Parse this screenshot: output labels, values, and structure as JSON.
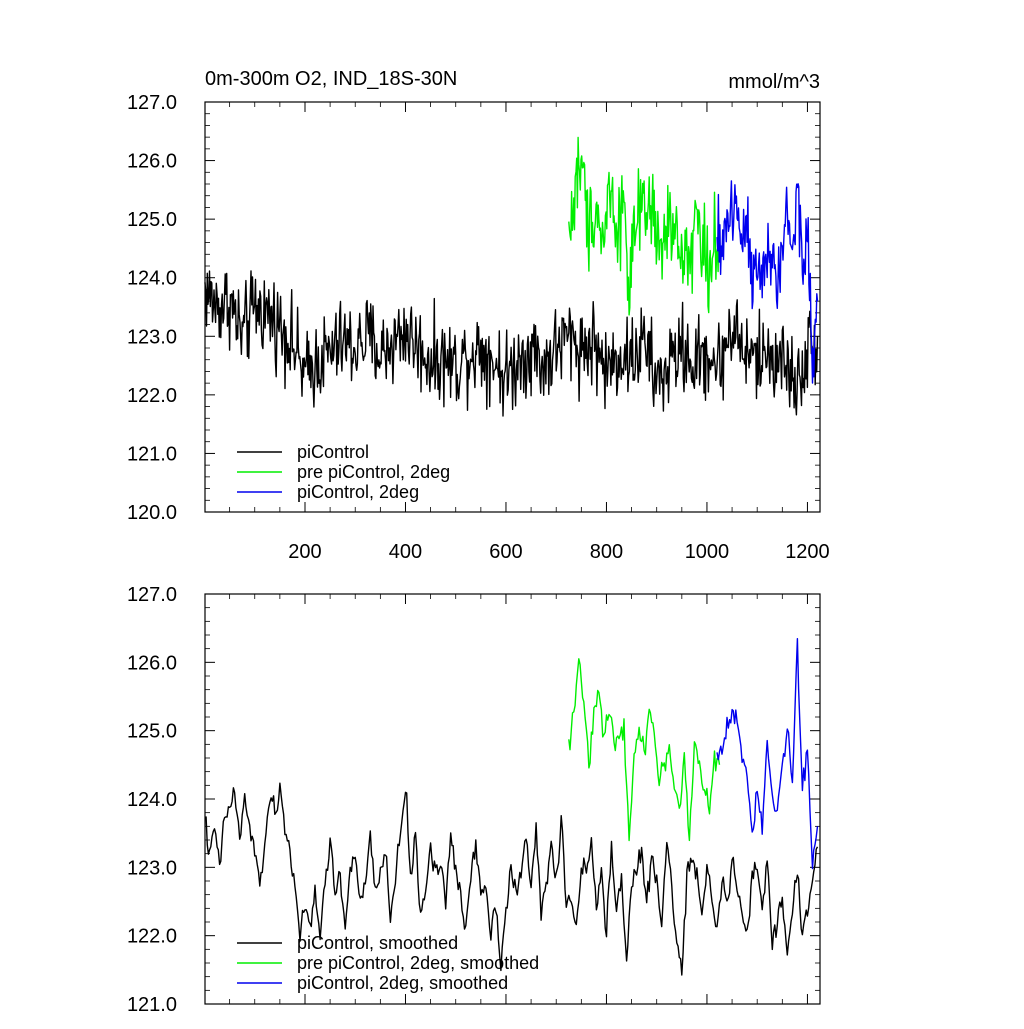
{
  "panels": [
    {
      "title_left": "0m-300m O2, IND_18S-30N",
      "title_right": "mmol/m^3",
      "ytick_labels": [
        "120.0",
        "121.0",
        "122.0",
        "123.0",
        "124.0",
        "125.0",
        "126.0",
        "127.0"
      ],
      "xtick_labels": [
        "200",
        "400",
        "600",
        "800",
        "1000",
        "1200"
      ],
      "legend": [
        "piControl",
        "pre piControl, 2deg",
        "piControl, 2deg"
      ]
    },
    {
      "title_left": "",
      "title_right": "",
      "ytick_labels": [
        "121.0",
        "122.0",
        "123.0",
        "124.0",
        "125.0",
        "126.0",
        "127.0"
      ],
      "xtick_labels": [],
      "legend": [
        "piControl, smoothed",
        "pre piControl, 2deg, smoothed",
        "piControl, 2deg, smoothed"
      ]
    }
  ],
  "chart_data": [
    {
      "type": "line",
      "title": "0m-300m O2, IND_18S-30N",
      "units": "mmol/m^3",
      "xlim": [
        1,
        1225
      ],
      "ylim": [
        120.0,
        127.0
      ],
      "xticks": [
        200,
        400,
        600,
        800,
        1000,
        1200
      ],
      "yticks": [
        120,
        121,
        122,
        123,
        124,
        125,
        126,
        127
      ],
      "legend_position": "bottom-left",
      "series": [
        {
          "name": "piControl",
          "color": "#000000",
          "x": [
            1,
            25,
            50,
            75,
            100,
            125,
            150,
            175,
            200,
            225,
            250,
            275,
            300,
            325,
            350,
            375,
            400,
            425,
            450,
            475,
            500,
            525,
            550,
            575,
            600,
            625,
            650,
            675,
            700,
            725,
            750,
            775,
            800,
            825,
            850,
            875,
            900,
            925,
            950,
            975,
            1000,
            1025,
            1050,
            1075,
            1100,
            1125,
            1150,
            1175,
            1200,
            1220
          ],
          "y": [
            123.8,
            123.5,
            123.6,
            123.0,
            123.5,
            123.4,
            123.2,
            122.9,
            122.3,
            122.6,
            122.7,
            122.9,
            122.8,
            123.0,
            122.7,
            122.9,
            123.1,
            122.8,
            122.6,
            122.6,
            122.5,
            122.7,
            122.8,
            122.6,
            122.3,
            122.6,
            122.8,
            122.5,
            122.8,
            123.0,
            122.8,
            122.9,
            122.4,
            122.7,
            122.6,
            122.9,
            122.2,
            122.5,
            122.8,
            122.5,
            122.7,
            122.5,
            123.2,
            122.7,
            122.6,
            122.7,
            122.6,
            122.2,
            122.7,
            123.0
          ]
        },
        {
          "name": "pre piControl, 2deg",
          "color": "#00ee00",
          "x": [
            725,
            735,
            745,
            755,
            765,
            775,
            785,
            795,
            805,
            815,
            825,
            835,
            845,
            855,
            865,
            875,
            885,
            895,
            905,
            915,
            925,
            935,
            945,
            955,
            965,
            975,
            985,
            995,
            1005,
            1015,
            1025
          ],
          "y": [
            124.8,
            125.2,
            126.0,
            125.6,
            124.8,
            125.3,
            125.0,
            124.6,
            125.6,
            125.1,
            124.9,
            125.4,
            123.8,
            124.6,
            125.1,
            124.9,
            125.2,
            125.1,
            124.3,
            124.6,
            125.0,
            124.7,
            124.4,
            124.6,
            124.2,
            125.0,
            124.9,
            124.4,
            124.2,
            124.7,
            124.5
          ]
        },
        {
          "name": "piControl, 2deg",
          "color": "#0000ee",
          "x": [
            1020,
            1030,
            1040,
            1050,
            1060,
            1070,
            1080,
            1090,
            1100,
            1110,
            1120,
            1130,
            1140,
            1150,
            1160,
            1170,
            1180,
            1190,
            1200,
            1210,
            1220
          ],
          "y": [
            124.5,
            124.6,
            125.0,
            125.2,
            125.1,
            124.8,
            125.0,
            124.0,
            124.6,
            123.9,
            124.2,
            124.5,
            123.8,
            124.4,
            125.3,
            124.3,
            125.8,
            123.9,
            124.8,
            122.6,
            123.6
          ]
        }
      ]
    },
    {
      "type": "line",
      "title": "",
      "xlim": [
        1,
        1225
      ],
      "ylim": [
        121.0,
        127.0
      ],
      "xticks": [
        200,
        400,
        600,
        800,
        1000,
        1200
      ],
      "yticks": [
        121,
        122,
        123,
        124,
        125,
        126,
        127
      ],
      "legend_position": "bottom-left",
      "series": [
        {
          "name": "piControl, smoothed",
          "color": "#000000",
          "x": [
            1,
            10,
            20,
            30,
            40,
            50,
            60,
            70,
            80,
            90,
            100,
            110,
            120,
            130,
            140,
            150,
            160,
            170,
            180,
            190,
            200,
            210,
            220,
            230,
            240,
            250,
            260,
            270,
            280,
            290,
            300,
            310,
            320,
            330,
            340,
            350,
            360,
            370,
            380,
            390,
            400,
            410,
            420,
            430,
            440,
            450,
            460,
            470,
            480,
            490,
            500,
            510,
            520,
            530,
            540,
            550,
            560,
            570,
            580,
            590,
            600,
            610,
            620,
            630,
            640,
            650,
            660,
            670,
            680,
            690,
            700,
            710,
            720,
            730,
            740,
            750,
            760,
            770,
            780,
            790,
            800,
            810,
            820,
            830,
            840,
            850,
            860,
            870,
            880,
            890,
            900,
            910,
            920,
            930,
            940,
            950,
            960,
            970,
            980,
            990,
            1000,
            1010,
            1020,
            1030,
            1040,
            1050,
            1060,
            1070,
            1080,
            1090,
            1100,
            1110,
            1120,
            1130,
            1140,
            1150,
            1160,
            1170,
            1180,
            1190,
            1200,
            1210,
            1220
          ],
          "y": [
            123.8,
            123.1,
            123.6,
            123.0,
            123.7,
            123.9,
            124.1,
            123.4,
            124.0,
            123.6,
            123.2,
            122.7,
            123.4,
            124.0,
            123.8,
            124.1,
            123.6,
            123.2,
            122.8,
            122.0,
            122.4,
            122.1,
            122.6,
            122.0,
            122.8,
            123.4,
            122.6,
            122.9,
            122.1,
            123.0,
            123.2,
            122.4,
            122.8,
            123.4,
            122.6,
            122.9,
            123.3,
            122.2,
            122.9,
            123.5,
            124.2,
            122.9,
            123.4,
            122.3,
            122.7,
            123.3,
            122.9,
            123.1,
            122.5,
            123.4,
            123.0,
            122.5,
            122.1,
            122.9,
            123.4,
            122.6,
            122.8,
            122.0,
            122.5,
            121.6,
            122.4,
            123.0,
            122.6,
            122.9,
            123.4,
            122.7,
            123.6,
            122.3,
            122.8,
            123.3,
            122.8,
            123.7,
            122.4,
            122.6,
            122.2,
            122.9,
            123.0,
            123.3,
            122.4,
            122.9,
            122.0,
            123.4,
            122.3,
            122.9,
            121.7,
            122.7,
            123.0,
            123.2,
            122.5,
            123.1,
            122.8,
            122.1,
            123.4,
            122.7,
            121.9,
            121.4,
            122.9,
            123.1,
            122.8,
            122.3,
            123.1,
            122.6,
            122.1,
            122.8,
            122.4,
            123.1,
            122.7,
            122.3,
            122.0,
            122.8,
            123.0,
            122.4,
            123.1,
            121.9,
            122.2,
            122.6,
            121.7,
            122.4,
            122.9,
            122.0,
            122.4,
            122.8,
            123.3
          ]
        },
        {
          "name": "pre piControl, 2deg, smoothed",
          "color": "#00ee00",
          "x": [
            725,
            735,
            745,
            755,
            765,
            775,
            785,
            795,
            805,
            815,
            825,
            835,
            845,
            855,
            865,
            875,
            885,
            895,
            905,
            915,
            925,
            935,
            945,
            955,
            965,
            975,
            985,
            995,
            1005,
            1015,
            1025
          ],
          "y": [
            124.8,
            125.3,
            126.1,
            125.4,
            124.4,
            125.3,
            125.6,
            124.8,
            125.4,
            124.8,
            125.0,
            125.1,
            123.4,
            124.6,
            125.1,
            124.7,
            125.3,
            125.0,
            124.2,
            124.5,
            124.8,
            124.2,
            123.8,
            124.6,
            123.4,
            124.8,
            124.5,
            124.2,
            123.8,
            124.6,
            124.5
          ]
        },
        {
          "name": "piControl, 2deg, smoothed",
          "color": "#0000ee",
          "x": [
            1020,
            1030,
            1040,
            1050,
            1060,
            1070,
            1080,
            1090,
            1100,
            1110,
            1120,
            1130,
            1140,
            1150,
            1160,
            1170,
            1180,
            1190,
            1200,
            1210,
            1220
          ],
          "y": [
            124.6,
            124.7,
            125.1,
            125.3,
            125.2,
            124.6,
            124.4,
            123.4,
            124.2,
            123.6,
            124.9,
            124.1,
            123.8,
            124.5,
            125.1,
            124.2,
            126.2,
            124.1,
            124.8,
            123.0,
            123.6
          ]
        }
      ]
    }
  ]
}
